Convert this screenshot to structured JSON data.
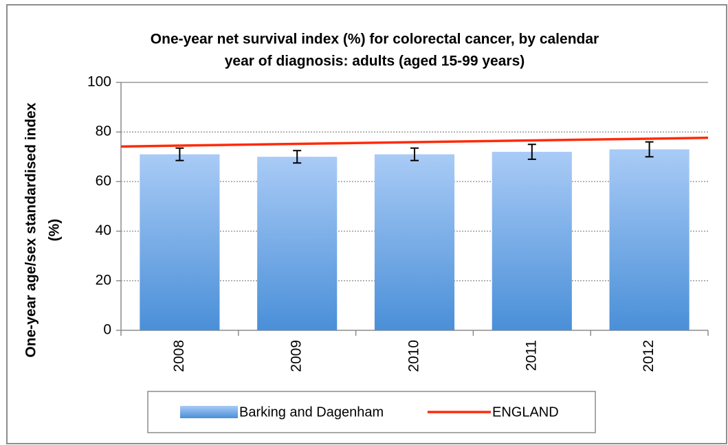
{
  "chart_data": {
    "type": "bar",
    "title": [
      "One-year net survival index (%) for colorectal cancer, by calendar",
      "year of diagnosis: adults (aged 15-99 years)"
    ],
    "y_label": [
      "One-year age/sex standardised index",
      "(%)"
    ],
    "categories": [
      "2008",
      "2009",
      "2010",
      "2011",
      "2012"
    ],
    "series": [
      {
        "name": "Barking and Dagenham",
        "type": "bar",
        "color": "#4a8fd8",
        "values": [
          71,
          70,
          71,
          72,
          73
        ],
        "errors": [
          2.5,
          2.5,
          2.5,
          3,
          3
        ]
      },
      {
        "name": "ENGLAND",
        "type": "line",
        "color": "#ff2a0a",
        "values": [
          74.5,
          75.2,
          75.9,
          76.6,
          77.3
        ]
      }
    ],
    "ylim": [
      0,
      100
    ],
    "yticks": [
      0,
      20,
      40,
      60,
      80,
      100
    ],
    "grid": true
  }
}
